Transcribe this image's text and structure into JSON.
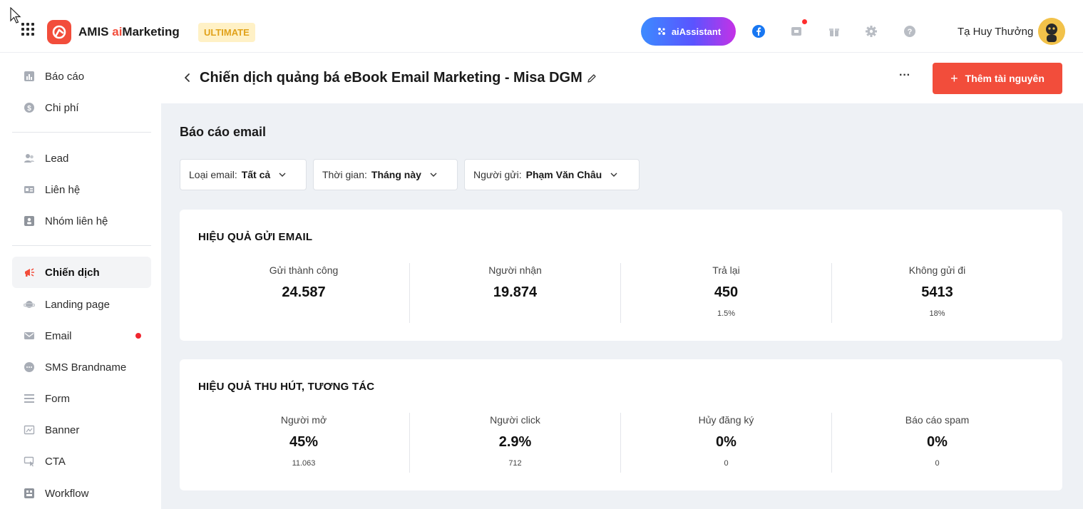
{
  "header": {
    "brand_prefix": "AMIS ",
    "brand_accent": "ai",
    "brand_suffix": "Marketing",
    "plan_badge": "ULTIMATE",
    "ai_assistant_label": "aiAssistant",
    "user_name": "Tạ Huy Thưởng",
    "icons": [
      "apps-grid-icon",
      "facebook-icon",
      "notification-icon",
      "gift-icon",
      "gear-icon",
      "help-icon"
    ],
    "colors": {
      "brand": "#f24d3b",
      "plan_badge_text": "#e1a21a",
      "plan_badge_bg": "#fff1c6"
    }
  },
  "sidebar": {
    "items": [
      {
        "label": "Báo cáo",
        "icon": "chart-icon"
      },
      {
        "label": "Chi phí",
        "icon": "dollar-icon"
      },
      {
        "label": "Lead",
        "icon": "users-icon"
      },
      {
        "label": "Liên hệ",
        "icon": "contact-card-icon"
      },
      {
        "label": "Nhóm liên hệ",
        "icon": "contact-group-icon"
      },
      {
        "label": "Chiến dịch",
        "icon": "megaphone-icon",
        "active": true
      },
      {
        "label": "Landing page",
        "icon": "planet-icon"
      },
      {
        "label": "Email",
        "icon": "mail-icon",
        "badge": "red-dot"
      },
      {
        "label": "SMS Brandname",
        "icon": "chat-bubble-icon"
      },
      {
        "label": "Form",
        "icon": "form-icon"
      },
      {
        "label": "Banner",
        "icon": "banner-icon"
      },
      {
        "label": "CTA",
        "icon": "cta-icon"
      },
      {
        "label": "Workflow",
        "icon": "workflow-icon"
      }
    ]
  },
  "page": {
    "title": "Chiến dịch quảng bá eBook Email Marketing - Misa DGM",
    "more_label": "···",
    "add_button_label": "Thêm tài nguyên"
  },
  "report": {
    "section_title": "Báo cáo email",
    "filters": [
      {
        "label": "Loại email:",
        "value": "Tất cả"
      },
      {
        "label": "Thời gian:",
        "value": "Tháng này"
      },
      {
        "label": "Người gửi:",
        "value": "Phạm Văn Châu"
      }
    ],
    "send_card": {
      "title": "HIỆU QUẢ GỬI EMAIL",
      "metrics": [
        {
          "label": "Gửi thành công",
          "value": "24.587",
          "sub": ""
        },
        {
          "label": "Người nhận",
          "value": "19.874",
          "sub": ""
        },
        {
          "label": "Trả lại",
          "value": "450",
          "sub": "1.5%"
        },
        {
          "label": "Không gửi đi",
          "value": "5413",
          "sub": "18%"
        }
      ]
    },
    "engage_card": {
      "title": "HIỆU QUẢ THU HÚT, TƯƠNG TÁC",
      "metrics": [
        {
          "label": "Người mở",
          "value": "45%",
          "sub": "11.063"
        },
        {
          "label": "Người click",
          "value": "2.9%",
          "sub": "712"
        },
        {
          "label": "Hủy đăng ký",
          "value": "0%",
          "sub": "0"
        },
        {
          "label": "Báo cáo spam",
          "value": "0%",
          "sub": "0"
        }
      ]
    }
  }
}
